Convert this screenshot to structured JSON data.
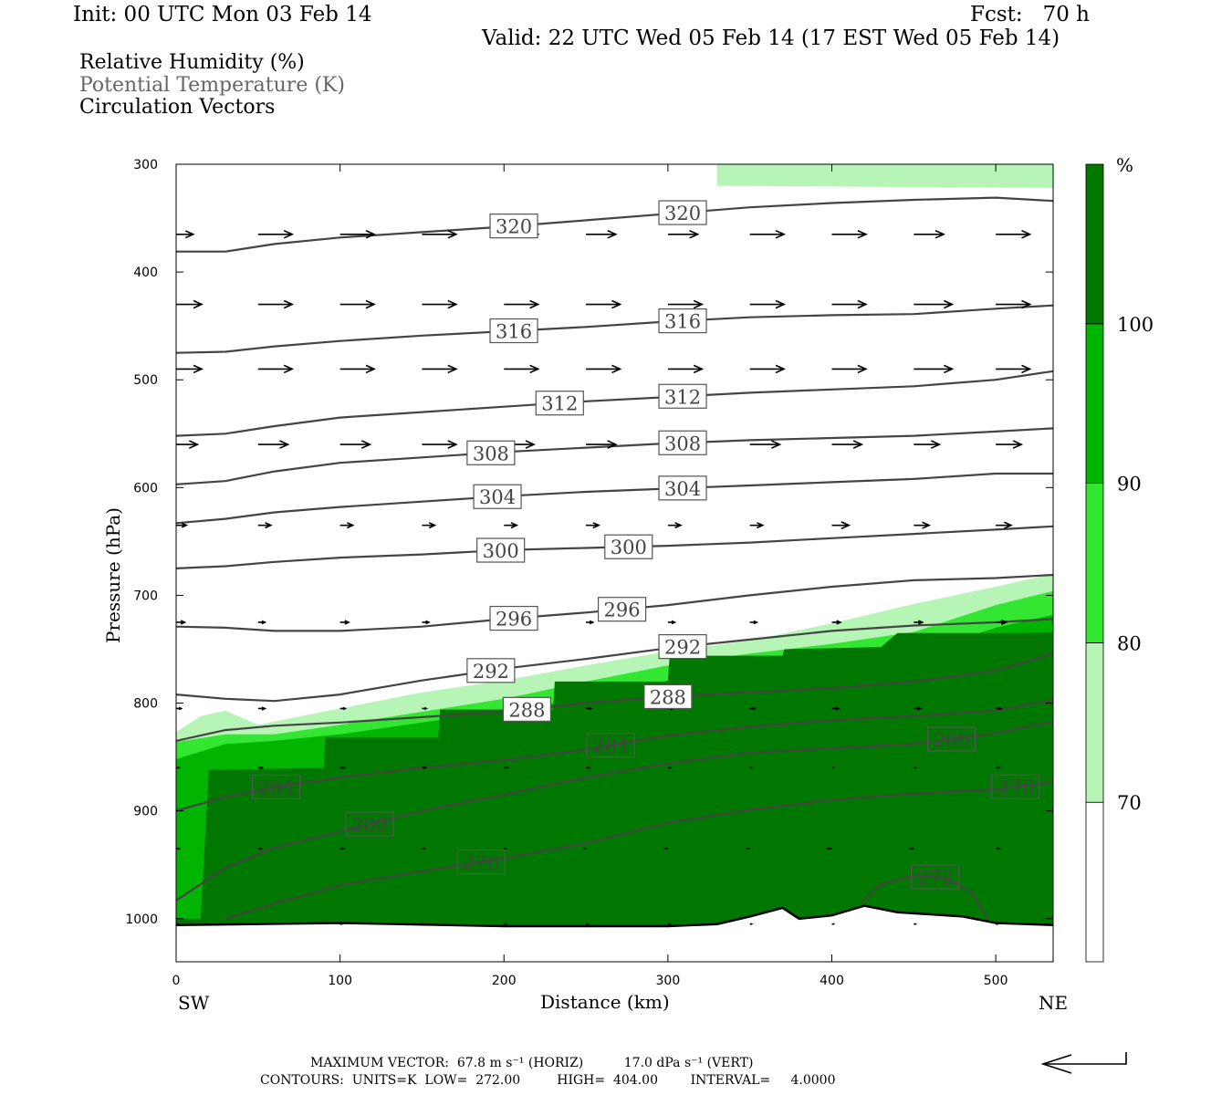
{
  "header": {
    "init": "Init: 00 UTC Mon 03 Feb 14",
    "fcst": "Fcst:   70 h",
    "valid": "Valid: 22 UTC Wed 05 Feb 14 (17 EST Wed 05 Feb 14)"
  },
  "legend": {
    "rh": "Relative Humidity (%)",
    "theta": "Potential Temperature (K)",
    "vectors": "Circulation Vectors"
  },
  "axes": {
    "ylabel": "Pressure (hPa)",
    "xlabel": "Distance (km)",
    "left_end": "SW",
    "right_end": "NE"
  },
  "colorbar": {
    "unit": "%",
    "levels": [
      70,
      80,
      90,
      100
    ],
    "colors": [
      "#ffffff",
      "#b7f5b7",
      "#32e632",
      "#00b400",
      "#007800"
    ]
  },
  "footer": {
    "line1": "MAXIMUM VECTOR:  67.8 m s⁻¹ (HORIZ)          17.0 dPa s⁻¹ (VERT)",
    "line2": "CONTOURS:  UNITS=K  LOW=  272.00         HIGH=  404.00        INTERVAL=     4.0000"
  },
  "chart_data": {
    "type": "contour",
    "xlabel": "Distance (km)",
    "ylabel": "Pressure (hPa)",
    "xlim": [
      0,
      535
    ],
    "ylim": [
      1040,
      300
    ],
    "xticks": [
      0,
      100,
      200,
      300,
      400,
      500
    ],
    "yticks": [
      300,
      400,
      500,
      600,
      700,
      800,
      900,
      1000
    ],
    "theta_contours_K": [
      {
        "level": 320,
        "x": [
          0,
          30,
          60,
          100,
          150,
          200,
          250,
          300,
          350,
          400,
          450,
          500,
          535
        ],
        "p": [
          381,
          381,
          374,
          368,
          363,
          358,
          352,
          346,
          340,
          336,
          333,
          331,
          334
        ]
      },
      {
        "level": 316,
        "x": [
          0,
          30,
          60,
          100,
          150,
          200,
          250,
          300,
          350,
          400,
          450,
          500,
          535
        ],
        "p": [
          475,
          474,
          469,
          464,
          459,
          455,
          451,
          446,
          442,
          440,
          439,
          434,
          431
        ]
      },
      {
        "level": 312,
        "x": [
          0,
          30,
          60,
          100,
          150,
          200,
          250,
          300,
          350,
          400,
          450,
          500,
          535
        ],
        "p": [
          552,
          550,
          543,
          535,
          530,
          525,
          520,
          516,
          512,
          509,
          506,
          500,
          492
        ]
      },
      {
        "level": 308,
        "x": [
          0,
          30,
          60,
          100,
          150,
          200,
          250,
          300,
          350,
          400,
          450,
          500,
          535
        ],
        "p": [
          597,
          594,
          585,
          577,
          572,
          567,
          563,
          559,
          556,
          554,
          552,
          548,
          545
        ]
      },
      {
        "level": 304,
        "x": [
          0,
          30,
          60,
          100,
          150,
          200,
          250,
          300,
          350,
          400,
          450,
          500,
          535
        ],
        "p": [
          633,
          629,
          623,
          618,
          613,
          608,
          604,
          601,
          598,
          595,
          592,
          587,
          587
        ]
      },
      {
        "level": 300,
        "x": [
          0,
          30,
          60,
          100,
          150,
          200,
          250,
          300,
          350,
          400,
          450,
          500,
          535
        ],
        "p": [
          675,
          673,
          669,
          665,
          662,
          658,
          656,
          654,
          651,
          647,
          643,
          639,
          636
        ]
      },
      {
        "level": 296,
        "x": [
          0,
          30,
          60,
          100,
          150,
          200,
          250,
          300,
          350,
          400,
          450,
          500,
          535
        ],
        "p": [
          729,
          730,
          733,
          733,
          729,
          722,
          716,
          709,
          700,
          692,
          686,
          684,
          681
        ]
      },
      {
        "level": 292,
        "x": [
          0,
          30,
          60,
          100,
          150,
          200,
          250,
          300,
          350,
          400,
          450,
          500,
          535
        ],
        "p": [
          792,
          796,
          798,
          792,
          779,
          768,
          759,
          749,
          741,
          733,
          728,
          725,
          722
        ]
      },
      {
        "level": 288,
        "x": [
          0,
          30,
          60,
          100,
          150,
          200,
          250,
          300,
          350,
          400,
          450,
          500,
          535
        ],
        "p": [
          835,
          825,
          821,
          818,
          813,
          808,
          800,
          794,
          790,
          786,
          780,
          770,
          754
        ]
      },
      {
        "level": 284,
        "x": [
          0,
          30,
          60,
          100,
          150,
          200,
          250,
          300,
          350,
          400,
          450,
          500,
          535
        ],
        "p": [
          900,
          887,
          878,
          869,
          860,
          853,
          843,
          830,
          822,
          816,
          812,
          807,
          797
        ]
      },
      {
        "level": 280,
        "x": [
          0,
          30,
          60,
          100,
          150,
          200,
          250,
          300,
          350,
          400,
          450,
          500,
          535
        ],
        "p": [
          983,
          953,
          934,
          919,
          900,
          885,
          869,
          856,
          846,
          842,
          838,
          828,
          817
        ]
      },
      {
        "level": 276,
        "x": [
          30,
          60,
          100,
          150,
          200,
          250,
          300,
          350,
          400,
          450,
          500,
          535
        ],
        "p": [
          1000,
          986,
          969,
          956,
          944,
          930,
          911,
          899,
          890,
          884,
          880,
          873
        ]
      },
      {
        "level": 272,
        "x": [
          418,
          430,
          450,
          470,
          485,
          495
        ],
        "p": [
          985,
          968,
          960,
          962,
          975,
          1000
        ]
      }
    ],
    "contour_labels": [
      {
        "level": 320,
        "x": [
          206,
          309
        ]
      },
      {
        "level": 316,
        "x": [
          206,
          309
        ]
      },
      {
        "level": 312,
        "x": [
          234,
          309
        ]
      },
      {
        "level": 308,
        "x": [
          192,
          309
        ]
      },
      {
        "level": 304,
        "x": [
          196,
          309
        ]
      },
      {
        "level": 300,
        "x": [
          198,
          276
        ]
      },
      {
        "level": 296,
        "x": [
          206,
          272
        ]
      },
      {
        "level": 292,
        "x": [
          192,
          309
        ]
      },
      {
        "level": 288,
        "x": [
          214,
          300
        ]
      },
      {
        "level": 284,
        "x": [
          61,
          265
        ]
      },
      {
        "level": 280,
        "x": [
          118,
          473
        ]
      },
      {
        "level": 276,
        "x": [
          186,
          512
        ]
      },
      {
        "level": 272,
        "x": [
          463
        ]
      }
    ],
    "rh_regions_percent": [
      {
        "min": 70,
        "top_x": [
          0,
          15,
          30,
          50,
          100,
          150,
          200,
          250,
          300,
          350,
          400,
          450,
          500,
          535
        ],
        "top_p": [
          827,
          812,
          807,
          820,
          805,
          790,
          779,
          765,
          752,
          742,
          726,
          708,
          692,
          680
        ]
      },
      {
        "min": 80,
        "top_x": [
          0,
          30,
          60,
          100,
          150,
          200,
          250,
          300,
          350,
          400,
          450,
          500,
          535
        ],
        "top_p": [
          836,
          829,
          829,
          820,
          808,
          796,
          780,
          765,
          754,
          745,
          734,
          709,
          696
        ]
      },
      {
        "min": 90,
        "top_x": [
          0,
          30,
          60,
          100,
          150,
          200,
          250,
          300,
          350,
          400,
          450,
          500,
          535
        ],
        "top_p": [
          852,
          838,
          835,
          829,
          818,
          808,
          795,
          779,
          770,
          762,
          755,
          730,
          718
        ]
      },
      {
        "min": 100,
        "top_x": [
          0,
          15,
          20,
          90,
          91,
          160,
          161,
          230,
          231,
          300,
          301,
          370,
          371,
          430,
          440,
          500,
          505,
          535
        ],
        "top_p": [
          1000,
          1000,
          862,
          860,
          832,
          832,
          806,
          806,
          780,
          780,
          756,
          756,
          750,
          748,
          735,
          735,
          735,
          734
        ]
      }
    ],
    "terrain_surface": {
      "x": [
        0,
        100,
        200,
        300,
        330,
        350,
        370,
        380,
        400,
        420,
        440,
        460,
        480,
        500,
        535
      ],
      "p": [
        1006,
        1004,
        1007,
        1007,
        1005,
        998,
        990,
        1000,
        997,
        988,
        994,
        996,
        998,
        1004,
        1006
      ]
    },
    "circulation_vectors": [
      {
        "p": 365,
        "points": [
          [
            0,
            20
          ],
          [
            50,
            40
          ],
          [
            100,
            40
          ],
          [
            150,
            40
          ],
          [
            200,
            40
          ],
          [
            250,
            35
          ],
          [
            300,
            35
          ],
          [
            350,
            40
          ],
          [
            400,
            40
          ],
          [
            450,
            35
          ],
          [
            500,
            40
          ]
        ]
      },
      {
        "p": 430,
        "points": [
          [
            0,
            30
          ],
          [
            50,
            40
          ],
          [
            100,
            40
          ],
          [
            150,
            40
          ],
          [
            200,
            40
          ],
          [
            250,
            40
          ],
          [
            300,
            40
          ],
          [
            350,
            40
          ],
          [
            400,
            40
          ],
          [
            450,
            45
          ],
          [
            500,
            40
          ]
        ]
      },
      {
        "p": 490,
        "points": [
          [
            0,
            30
          ],
          [
            50,
            40
          ],
          [
            100,
            40
          ],
          [
            150,
            40
          ],
          [
            200,
            40
          ],
          [
            250,
            40
          ],
          [
            300,
            40
          ],
          [
            350,
            40
          ],
          [
            400,
            40
          ],
          [
            450,
            45
          ],
          [
            500,
            40
          ]
        ]
      },
      {
        "p": 560,
        "points": [
          [
            0,
            25
          ],
          [
            50,
            35
          ],
          [
            100,
            35
          ],
          [
            150,
            40
          ],
          [
            200,
            35
          ],
          [
            250,
            35
          ],
          [
            300,
            35
          ],
          [
            350,
            35
          ],
          [
            400,
            35
          ],
          [
            450,
            30
          ],
          [
            500,
            30
          ]
        ]
      },
      {
        "p": 635,
        "points": [
          [
            0,
            12
          ],
          [
            50,
            15
          ],
          [
            100,
            15
          ],
          [
            150,
            15
          ],
          [
            200,
            15
          ],
          [
            250,
            15
          ],
          [
            300,
            15
          ],
          [
            350,
            15
          ],
          [
            400,
            20
          ],
          [
            450,
            18
          ],
          [
            500,
            18
          ]
        ]
      },
      {
        "p": 725,
        "points": [
          [
            0,
            10
          ],
          [
            50,
            8
          ],
          [
            100,
            10
          ],
          [
            150,
            8
          ],
          [
            200,
            8
          ],
          [
            250,
            8
          ],
          [
            300,
            8
          ],
          [
            350,
            8
          ],
          [
            400,
            10
          ],
          [
            450,
            10
          ],
          [
            500,
            12
          ]
        ]
      },
      {
        "p": 805,
        "points": [
          [
            0,
            6
          ],
          [
            50,
            8
          ],
          [
            100,
            6
          ],
          [
            150,
            5
          ],
          [
            200,
            5
          ],
          [
            250,
            6
          ],
          [
            300,
            6
          ],
          [
            350,
            6
          ],
          [
            400,
            8
          ],
          [
            450,
            8
          ],
          [
            500,
            6
          ]
        ]
      },
      {
        "p": 860,
        "points": [
          [
            0,
            4
          ],
          [
            50,
            5
          ],
          [
            100,
            5
          ],
          [
            150,
            4
          ],
          [
            200,
            4
          ],
          [
            250,
            4
          ],
          [
            300,
            3
          ],
          [
            350,
            2
          ],
          [
            400,
            2
          ],
          [
            450,
            2
          ],
          [
            500,
            4
          ]
        ]
      },
      {
        "p": 935,
        "points": [
          [
            0,
            4
          ],
          [
            50,
            4
          ],
          [
            100,
            4
          ],
          [
            150,
            3
          ],
          [
            200,
            2
          ],
          [
            250,
            -2
          ],
          [
            300,
            -3
          ],
          [
            350,
            -3
          ],
          [
            400,
            -5
          ],
          [
            450,
            -4
          ],
          [
            500,
            4
          ]
        ]
      },
      {
        "p": 1005,
        "points": [
          [
            0,
            2
          ],
          [
            50,
            2
          ],
          [
            100,
            2
          ],
          [
            150,
            2
          ],
          [
            200,
            2
          ],
          [
            250,
            2
          ],
          [
            300,
            2
          ],
          [
            350,
            2
          ],
          [
            400,
            2
          ],
          [
            450,
            2
          ],
          [
            500,
            2
          ]
        ]
      }
    ],
    "reference_vector": "67.8 m s⁻¹ (HORIZ), 17.0 dPa s⁻¹ (VERT)"
  }
}
